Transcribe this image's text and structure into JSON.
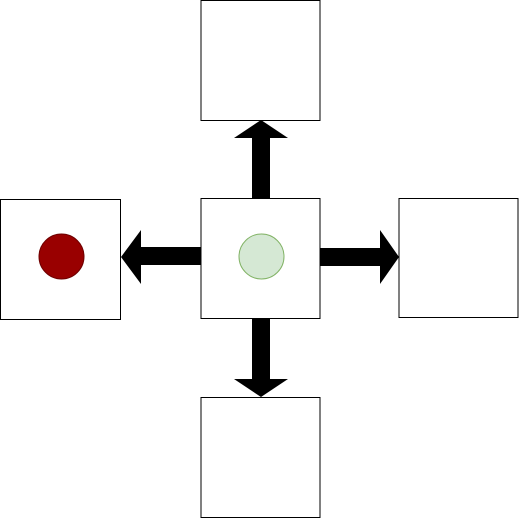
{
  "diagram": {
    "boxes": [
      {
        "id": "top",
        "token": null
      },
      {
        "id": "left",
        "token": {
          "color": "#990000",
          "stroke": "#6f0000"
        }
      },
      {
        "id": "center",
        "token": {
          "color": "#d5e8d4",
          "stroke": "#82b366"
        }
      },
      {
        "id": "right",
        "token": null
      },
      {
        "id": "bottom",
        "token": null
      }
    ],
    "arrows": [
      {
        "id": "up",
        "from": "center",
        "to": "top"
      },
      {
        "id": "left",
        "from": "center",
        "to": "left"
      },
      {
        "id": "right",
        "from": "center",
        "to": "right"
      },
      {
        "id": "down",
        "from": "center",
        "to": "bottom"
      }
    ],
    "colors": {
      "box_fill": "#ffffff",
      "box_stroke": "#000000",
      "arrow_fill": "#000000"
    }
  }
}
